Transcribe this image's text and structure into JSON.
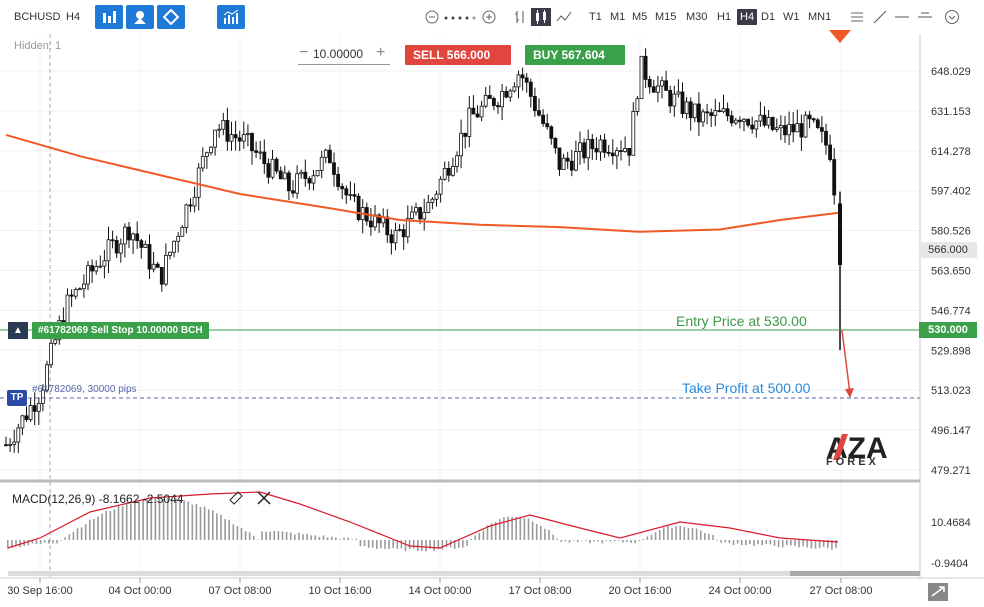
{
  "toolbar": {
    "symbol": "BCHUSD",
    "period": "H4",
    "timeframes": [
      "T1",
      "M1",
      "M5",
      "M15",
      "M30",
      "H1",
      "H4",
      "D1",
      "W1",
      "MN1"
    ],
    "active_timeframe": "H4",
    "icons": [
      "bar-chart-icon",
      "person-icon",
      "diamond-icon",
      "indicators-icon"
    ]
  },
  "trade": {
    "hidden_text": "Hidden: 1",
    "quantity": "10.00000",
    "sell_label": "SELL",
    "sell_price": "566.000",
    "buy_label": "BUY",
    "buy_price": "567.604"
  },
  "order": {
    "label": "#61782069 Sell Stop 10.00000 BCH",
    "tp_icon": "TP",
    "tp_label": "#61782069, 30000 pips"
  },
  "annotations": {
    "entry": "Entry Price at 530.00",
    "take_profit": "Take Profit at 500.00"
  },
  "price_axis": {
    "labels": [
      "648.029",
      "631.153",
      "614.278",
      "597.402",
      "580.526",
      "563.650",
      "546.774",
      "529.898",
      "513.023",
      "496.147",
      "479.271"
    ],
    "current_price": "566.000",
    "entry_price": "530.000"
  },
  "macd": {
    "label": "MACD(12,26,9) -8.1662 -2.5044",
    "axis_labels": [
      "10.4684",
      "-0.9404"
    ]
  },
  "time_axis": {
    "labels": [
      "30 Sep 16:00",
      "04 Oct 00:00",
      "07 Oct 08:00",
      "10 Oct 16:00",
      "14 Oct 00:00",
      "17 Oct 08:00",
      "20 Oct 16:00",
      "24 Oct 00:00",
      "27 Oct 08:00"
    ]
  },
  "logo": {
    "brand": "AZA",
    "sub": "FOREX"
  },
  "colors": {
    "sell": "#e0463e",
    "buy": "#3aa04a",
    "ma": "#f05a28",
    "tp": "#2a8bd8"
  }
}
